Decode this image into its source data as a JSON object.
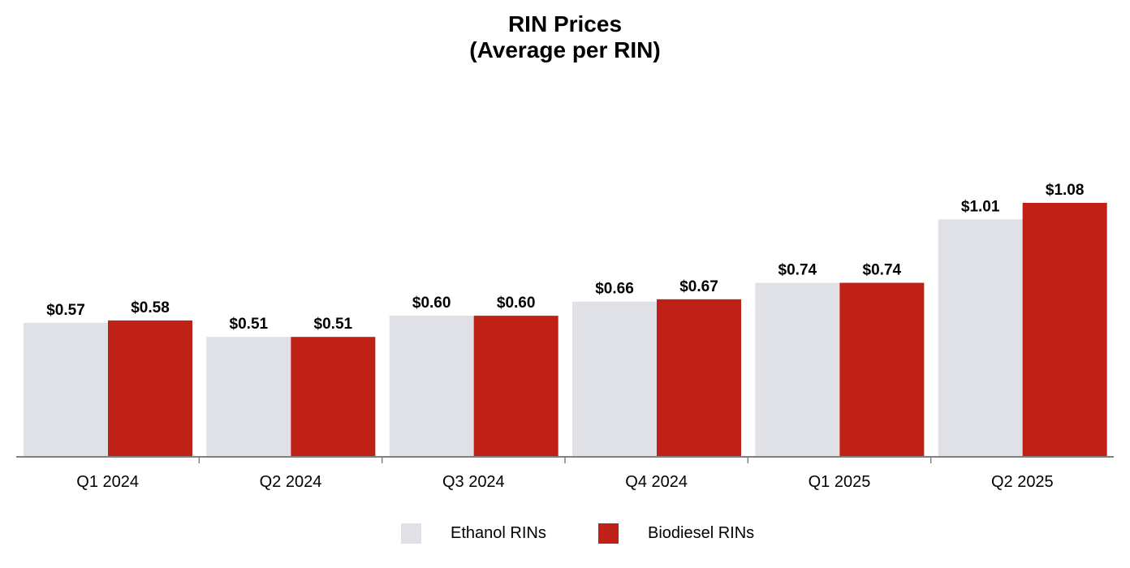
{
  "chart_data": {
    "type": "bar",
    "title": [
      "RIN Prices",
      "(Average per RIN)"
    ],
    "categories": [
      "Q1 2024",
      "Q2 2024",
      "Q3 2024",
      "Q4 2024",
      "Q1 2025",
      "Q2 2025"
    ],
    "series": [
      {
        "name": "Ethanol RINs",
        "color": "#e0e1e6",
        "values": [
          0.57,
          0.51,
          0.6,
          0.66,
          0.74,
          1.01
        ],
        "labels": [
          "$0.57",
          "$0.51",
          "$0.60",
          "$0.66",
          "$0.74",
          "$1.01"
        ]
      },
      {
        "name": "Biodiesel RINs",
        "color": "#bf2116",
        "values": [
          0.58,
          0.51,
          0.6,
          0.67,
          0.74,
          1.08
        ],
        "labels": [
          "$0.58",
          "$0.51",
          "$0.60",
          "$0.67",
          "$0.74",
          "$1.08"
        ]
      }
    ],
    "ylim": [
      0,
      1.08
    ],
    "xlabel": "",
    "ylabel": "",
    "grid": false,
    "legend_position": "bottom-center",
    "axis_color": "#808080"
  }
}
